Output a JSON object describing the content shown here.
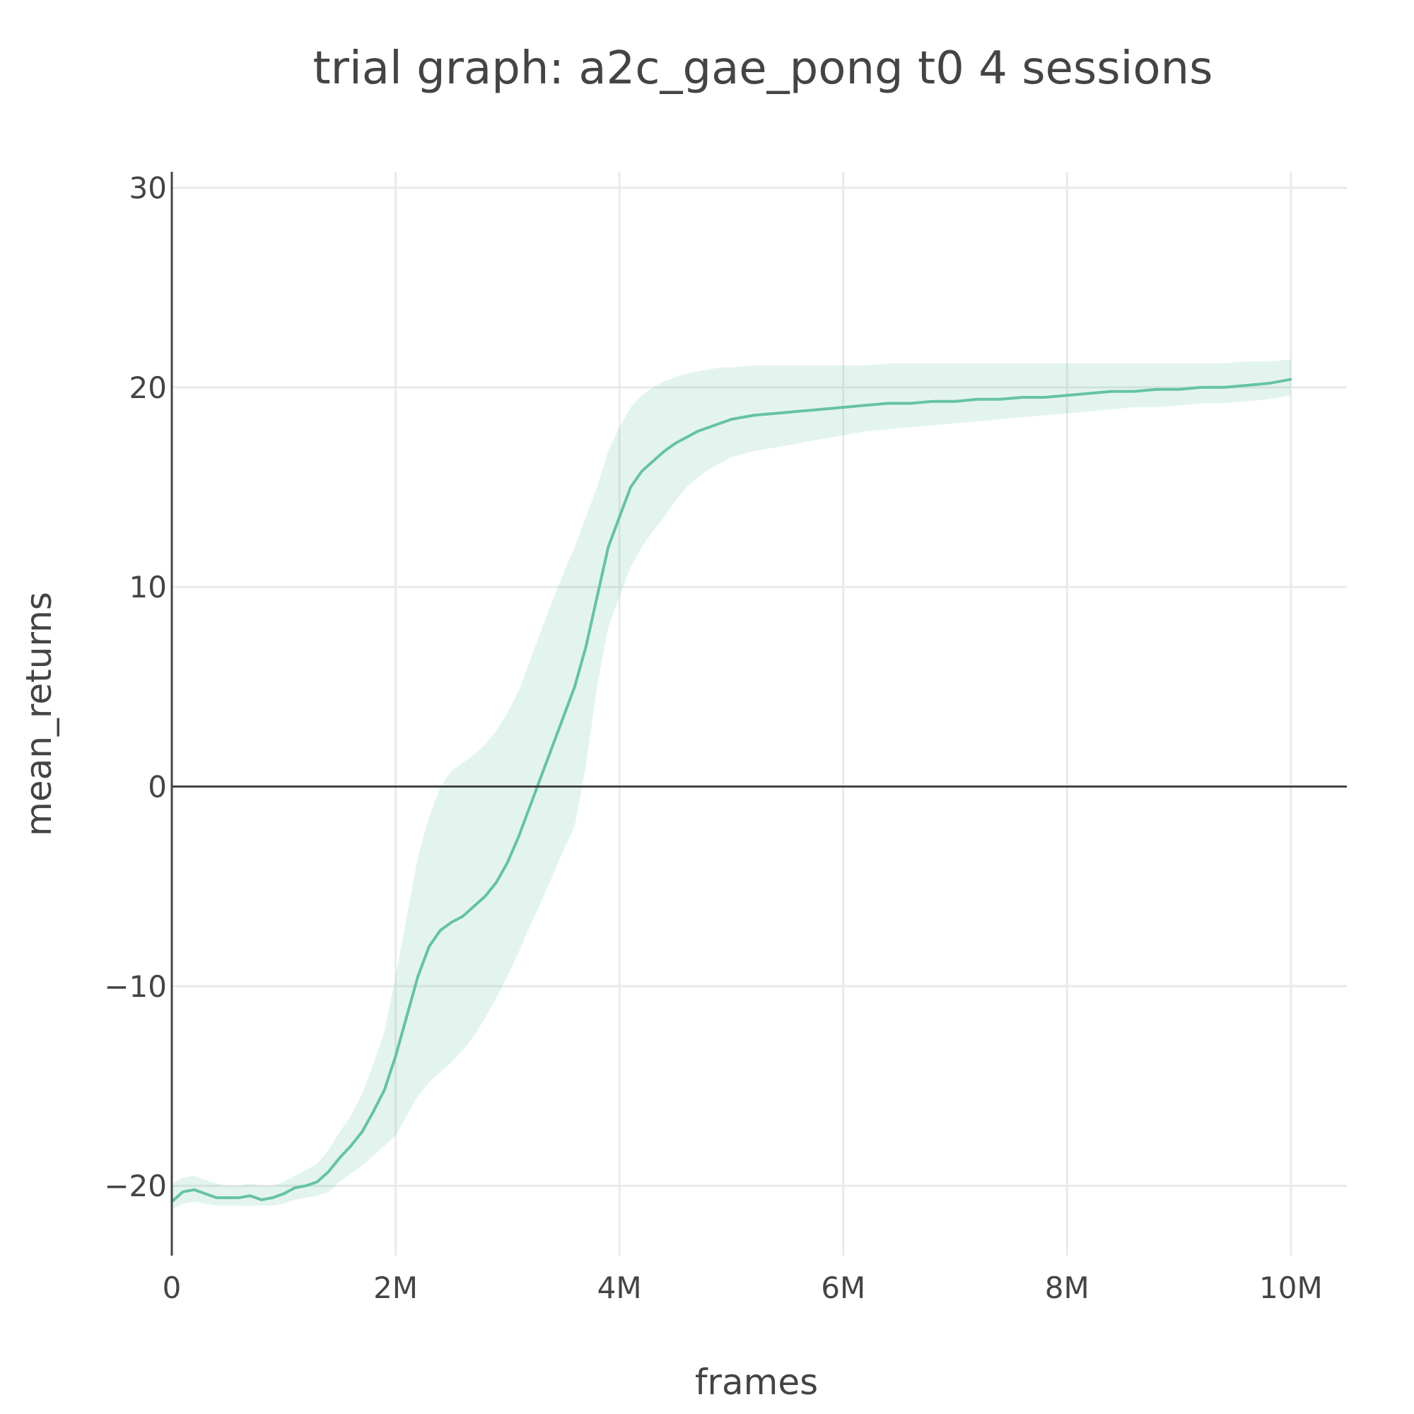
{
  "colors": {
    "line": "#66c2a5",
    "band": "#66c2a5",
    "band_opacity": 0.18,
    "grid": "#e9eaea",
    "axis": "#444444",
    "text": "#444444"
  },
  "chart_data": {
    "type": "line",
    "title": "trial graph: a2c_gae_pong t0 4 sessions",
    "xlabel": "frames",
    "ylabel": "mean_returns",
    "xlim": [
      0,
      10500000
    ],
    "ylim": [
      -23.5,
      30.8
    ],
    "grid": true,
    "x_ticks": [
      {
        "value": 0,
        "label": "0"
      },
      {
        "value": 2000000,
        "label": "2M"
      },
      {
        "value": 4000000,
        "label": "4M"
      },
      {
        "value": 6000000,
        "label": "6M"
      },
      {
        "value": 8000000,
        "label": "8M"
      },
      {
        "value": 10000000,
        "label": "10M"
      }
    ],
    "y_ticks": [
      {
        "value": -20,
        "label": "−20"
      },
      {
        "value": -10,
        "label": "−10"
      },
      {
        "value": 0,
        "label": "0"
      },
      {
        "value": 10,
        "label": "10"
      },
      {
        "value": 20,
        "label": "20"
      },
      {
        "value": 30,
        "label": "30"
      }
    ],
    "series": [
      {
        "x": [
          0,
          100000,
          200000,
          300000,
          400000,
          500000,
          600000,
          700000,
          800000,
          900000,
          1000000,
          1100000,
          1200000,
          1300000,
          1400000,
          1500000,
          1600000,
          1700000,
          1800000,
          1900000,
          2000000,
          2100000,
          2200000,
          2300000,
          2400000,
          2500000,
          2600000,
          2700000,
          2800000,
          2900000,
          3000000,
          3100000,
          3200000,
          3300000,
          3400000,
          3500000,
          3600000,
          3700000,
          3800000,
          3900000,
          4000000,
          4100000,
          4200000,
          4300000,
          4400000,
          4500000,
          4600000,
          4700000,
          4800000,
          4900000,
          5000000,
          5200000,
          5400000,
          5600000,
          5800000,
          6000000,
          6200000,
          6400000,
          6600000,
          6800000,
          7000000,
          7200000,
          7400000,
          7600000,
          7800000,
          8000000,
          8200000,
          8400000,
          8600000,
          8800000,
          9000000,
          9200000,
          9400000,
          9600000,
          9800000,
          10000000
        ],
        "y": [
          -20.8,
          -20.3,
          -20.2,
          -20.4,
          -20.6,
          -20.6,
          -20.6,
          -20.5,
          -20.7,
          -20.6,
          -20.4,
          -20.1,
          -20.0,
          -19.8,
          -19.3,
          -18.6,
          -18.0,
          -17.3,
          -16.3,
          -15.2,
          -13.5,
          -11.5,
          -9.5,
          -8.0,
          -7.2,
          -6.8,
          -6.5,
          -6.0,
          -5.5,
          -4.8,
          -3.8,
          -2.5,
          -1.0,
          0.5,
          2.0,
          3.5,
          5.0,
          7.0,
          9.5,
          12.0,
          13.5,
          15.0,
          15.8,
          16.3,
          16.8,
          17.2,
          17.5,
          17.8,
          18.0,
          18.2,
          18.4,
          18.6,
          18.7,
          18.8,
          18.9,
          19.0,
          19.1,
          19.2,
          19.2,
          19.3,
          19.3,
          19.4,
          19.4,
          19.5,
          19.5,
          19.6,
          19.7,
          19.8,
          19.8,
          19.9,
          19.9,
          20.0,
          20.0,
          20.1,
          20.2,
          20.4
        ],
        "band_lo": [
          -21.2,
          -20.9,
          -20.8,
          -20.9,
          -21.0,
          -21.0,
          -21.0,
          -21.0,
          -21.0,
          -21.0,
          -20.9,
          -20.7,
          -20.6,
          -20.5,
          -20.3,
          -19.8,
          -19.4,
          -19.0,
          -18.5,
          -18.0,
          -17.5,
          -16.5,
          -15.5,
          -14.8,
          -14.3,
          -13.8,
          -13.2,
          -12.5,
          -11.6,
          -10.6,
          -9.5,
          -8.3,
          -7.0,
          -5.8,
          -4.5,
          -3.2,
          -2.0,
          1.0,
          5.0,
          8.0,
          9.5,
          11.0,
          12.0,
          12.8,
          13.5,
          14.3,
          15.0,
          15.5,
          15.9,
          16.2,
          16.5,
          16.8,
          17.0,
          17.2,
          17.4,
          17.6,
          17.8,
          17.9,
          18.0,
          18.1,
          18.2,
          18.3,
          18.4,
          18.5,
          18.6,
          18.7,
          18.8,
          18.9,
          19.0,
          19.0,
          19.1,
          19.2,
          19.2,
          19.3,
          19.4,
          19.6
        ],
        "band_hi": [
          -19.9,
          -19.6,
          -19.5,
          -19.7,
          -19.9,
          -20.0,
          -20.0,
          -19.9,
          -20.0,
          -20.0,
          -19.8,
          -19.5,
          -19.2,
          -18.9,
          -18.2,
          -17.3,
          -16.5,
          -15.4,
          -13.9,
          -12.3,
          -9.5,
          -6.5,
          -3.5,
          -1.5,
          0.0,
          0.8,
          1.2,
          1.6,
          2.1,
          2.8,
          3.7,
          4.8,
          6.3,
          7.8,
          9.3,
          10.7,
          12.0,
          13.5,
          15.0,
          16.8,
          18.0,
          19.0,
          19.6,
          20.0,
          20.3,
          20.5,
          20.7,
          20.8,
          20.9,
          21.0,
          21.0,
          21.1,
          21.1,
          21.1,
          21.1,
          21.1,
          21.1,
          21.2,
          21.2,
          21.2,
          21.2,
          21.2,
          21.2,
          21.2,
          21.2,
          21.2,
          21.2,
          21.2,
          21.2,
          21.2,
          21.2,
          21.2,
          21.2,
          21.3,
          21.3,
          21.4
        ]
      }
    ]
  }
}
